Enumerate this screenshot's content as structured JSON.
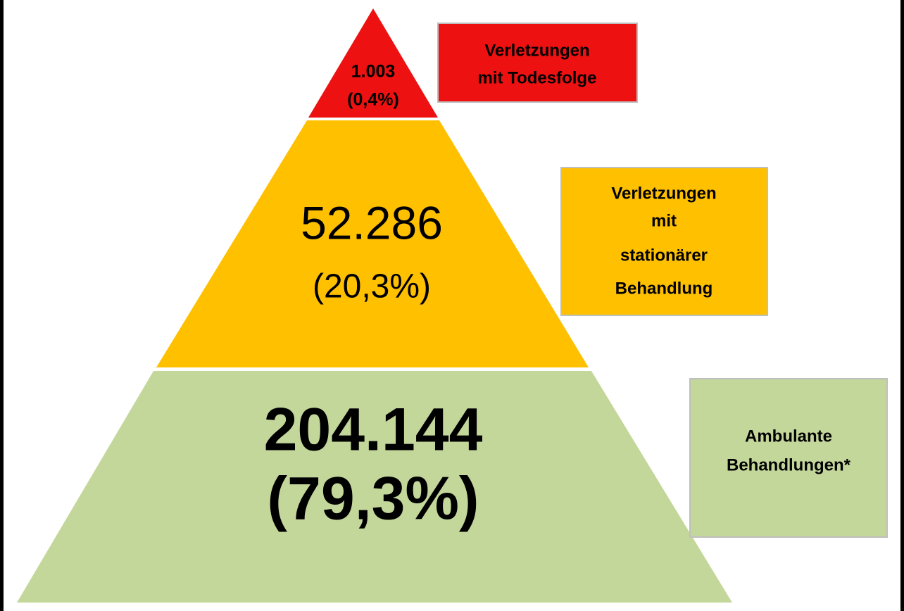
{
  "levels": [
    {
      "value": "1.003",
      "share": "(0,4%)",
      "label": [
        "Verletzungen",
        "mit Todesfolge"
      ]
    },
    {
      "value": "52.286",
      "share": "(20,3%)",
      "label": [
        "Verletzungen",
        "mit",
        "stationärer",
        "Behandlung"
      ]
    },
    {
      "value": "204.144",
      "share": "(79,3%)",
      "label": [
        "Ambulante",
        "Behandlungen*"
      ]
    }
  ]
}
